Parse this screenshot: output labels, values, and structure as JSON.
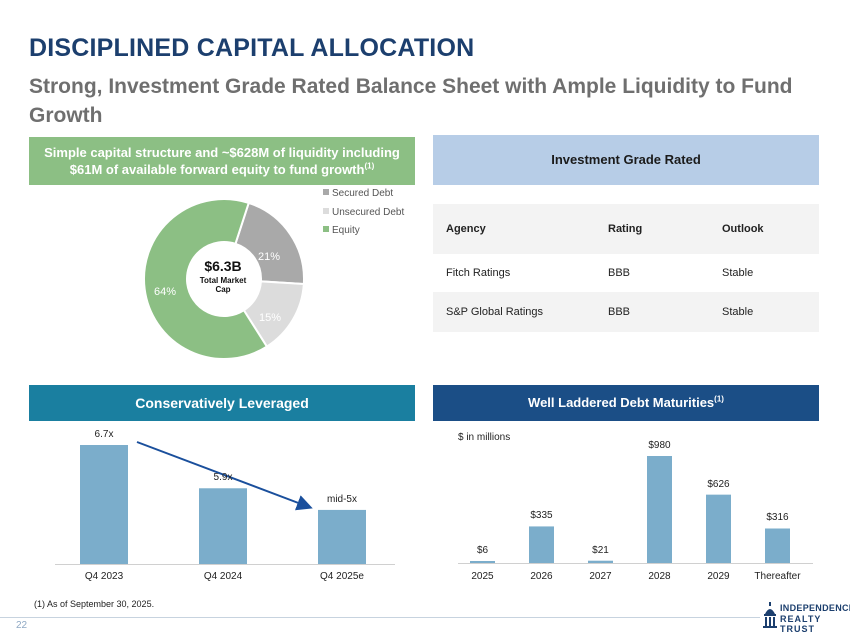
{
  "header": {
    "title": "DISCIPLINED CAPITAL ALLOCATION",
    "subtitle": "Strong, Investment Grade Rated Balance Sheet with Ample Liquidity to Fund Growth"
  },
  "capital_structure": {
    "banner_text": "Simple capital structure and ~$628M of liquidity including $61M of available forward equity to fund growth",
    "banner_sup": "(1)",
    "center_value": "$6.3B",
    "center_sub": "Total Market Cap",
    "legend": [
      "Secured Debt",
      "Unsecured Debt",
      "Equity"
    ],
    "slice_labels": [
      "21%",
      "15%",
      "64%"
    ]
  },
  "ratings": {
    "banner_text": "Investment Grade Rated",
    "headers": [
      "Agency",
      "Rating",
      "Outlook"
    ],
    "rows": [
      [
        "Fitch Ratings",
        "BBB",
        "Stable"
      ],
      [
        "S&P Global Ratings",
        "BBB",
        "Stable"
      ]
    ]
  },
  "leverage": {
    "banner_text": "Conservatively Leveraged",
    "labels": [
      "6.7x",
      "5.9x",
      "mid-5x"
    ],
    "categories": [
      "Q4 2023",
      "Q4 2024",
      "Q4 2025e"
    ]
  },
  "maturities": {
    "banner_text": "Well Laddered Debt Maturities",
    "banner_sup": "(1)",
    "unit_note": "$ in millions",
    "labels": [
      "$6",
      "$335",
      "$21",
      "$980",
      "$626",
      "$316"
    ],
    "categories": [
      "2025",
      "2026",
      "2027",
      "2028",
      "2029",
      "Thereafter"
    ]
  },
  "footer": {
    "footnote": "(1) As of September 30, 2025.",
    "page_number": "22",
    "logo_top": "INDEPENDENCE",
    "logo_bottom": "REALTY TRUST"
  },
  "colors": {
    "title": "#1c3f6e",
    "secured": "#a9a9a9",
    "unsecured": "#dcdcdc",
    "equity": "#8cbf84",
    "leverage_bar": "#7badcb",
    "maturity_bar": "#7badcb"
  },
  "chart_data": [
    {
      "type": "pie",
      "title": "$6.3B Total Market Cap",
      "categories": [
        "Secured Debt",
        "Unsecured Debt",
        "Equity"
      ],
      "values": [
        21,
        15,
        64
      ],
      "unit": "%",
      "legend": "top-right"
    },
    {
      "type": "bar",
      "title": "Conservatively Leveraged",
      "categories": [
        "Q4 2023",
        "Q4 2024",
        "Q4 2025e"
      ],
      "values": [
        6.7,
        5.9,
        5.5
      ],
      "value_labels": [
        "6.7x",
        "5.9x",
        "mid-5x"
      ],
      "ylim": [
        4.5,
        6.7
      ]
    },
    {
      "type": "bar",
      "title": "Well Laddered Debt Maturities",
      "ylabel": "$ in millions",
      "categories": [
        "2025",
        "2026",
        "2027",
        "2028",
        "2029",
        "Thereafter"
      ],
      "values": [
        6,
        335,
        21,
        980,
        626,
        316
      ],
      "value_labels": [
        "$6",
        "$335",
        "$21",
        "$980",
        "$626",
        "$316"
      ],
      "ylim": [
        0,
        980
      ]
    }
  ]
}
